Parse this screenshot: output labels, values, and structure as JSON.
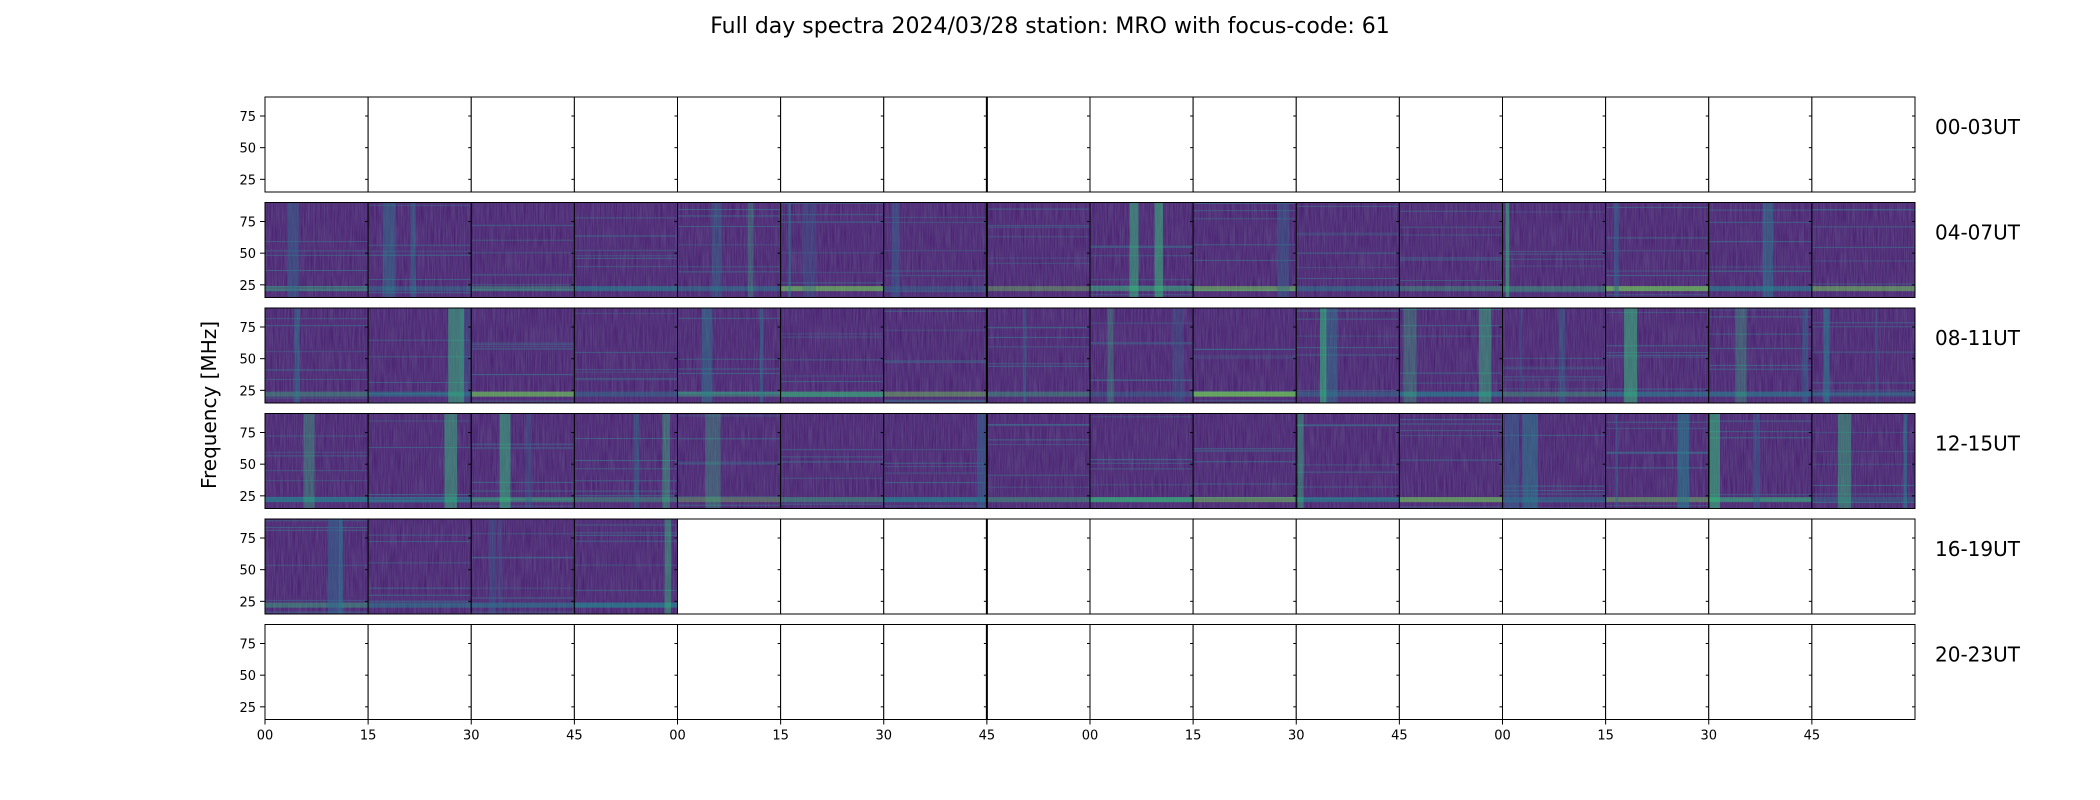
{
  "chart_data": {
    "type": "heatmap",
    "title": "Full day spectra 2024/03/28 station: MRO with focus-code: 61",
    "ylabel": "Frequency [MHz]",
    "xlabel": "",
    "x_tick_labels": [
      "00",
      "15",
      "30",
      "45",
      "00",
      "15",
      "30",
      "45",
      "00",
      "15",
      "30",
      "45",
      "00",
      "15",
      "30",
      "45"
    ],
    "y_ticks": [
      25,
      50,
      75
    ],
    "y_range_mhz": [
      15,
      90
    ],
    "colormap": "viridis",
    "row_labels": [
      "00-03UT",
      "04-07UT",
      "08-11UT",
      "12-15UT",
      "16-19UT",
      "20-23UT"
    ],
    "panels_per_row": 16,
    "panel_duration_min": 15,
    "data_present": [
      [
        0,
        0,
        0,
        0,
        0,
        0,
        0,
        0,
        0,
        0,
        0,
        0,
        0,
        0,
        0,
        0
      ],
      [
        1,
        1,
        1,
        1,
        1,
        1,
        1,
        1,
        1,
        1,
        1,
        1,
        1,
        1,
        1,
        1
      ],
      [
        1,
        1,
        1,
        1,
        1,
        1,
        1,
        1,
        1,
        1,
        1,
        1,
        1,
        1,
        1,
        1
      ],
      [
        1,
        1,
        1,
        1,
        1,
        1,
        1,
        1,
        1,
        1,
        1,
        1,
        1,
        1,
        1,
        1
      ],
      [
        1,
        1,
        1,
        1,
        0,
        0,
        0,
        0,
        0,
        0,
        0,
        0,
        0,
        0,
        0,
        0
      ],
      [
        0,
        0,
        0,
        0,
        0,
        0,
        0,
        0,
        0,
        0,
        0,
        0,
        0,
        0,
        0,
        0
      ]
    ]
  }
}
